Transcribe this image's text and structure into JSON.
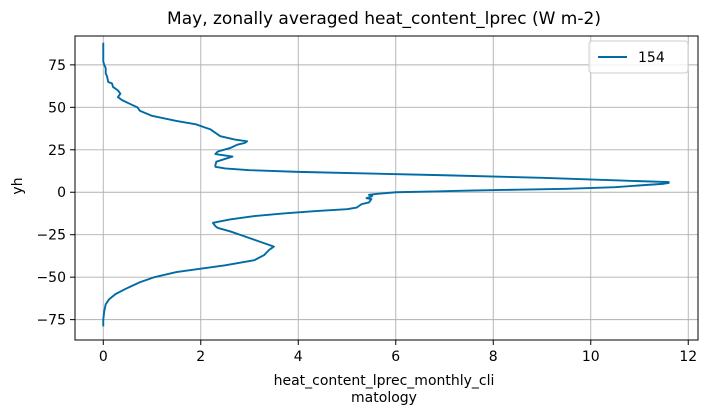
{
  "chart_data": {
    "type": "line",
    "title": "May, zonally averaged heat_content_lprec (W m-2)",
    "xlabel_lines": [
      "heat_content_lprec_monthly_cli",
      "matology"
    ],
    "ylabel": "yh",
    "xlim": [
      -0.58,
      12.2
    ],
    "ylim": [
      -87,
      92
    ],
    "xticks": [
      0,
      2,
      4,
      6,
      8,
      10,
      12
    ],
    "xtick_labels": [
      "0",
      "2",
      "4",
      "6",
      "8",
      "10",
      "12"
    ],
    "yticks": [
      -75,
      -50,
      -25,
      0,
      25,
      50,
      75
    ],
    "ytick_labels": [
      "−75",
      "−50",
      "−25",
      "0",
      "25",
      "50",
      "75"
    ],
    "grid": true,
    "legend_position": "top-right",
    "series": [
      {
        "name": "154",
        "color": "#006ba4",
        "points": [
          [
            0.0,
            -79
          ],
          [
            0.0,
            -75
          ],
          [
            0.02,
            -70
          ],
          [
            0.05,
            -66
          ],
          [
            0.12,
            -63
          ],
          [
            0.25,
            -60
          ],
          [
            0.45,
            -57
          ],
          [
            0.75,
            -53
          ],
          [
            1.05,
            -50
          ],
          [
            1.5,
            -47
          ],
          [
            2.0,
            -45
          ],
          [
            2.5,
            -43
          ],
          [
            3.1,
            -40
          ],
          [
            3.3,
            -37
          ],
          [
            3.4,
            -34
          ],
          [
            3.5,
            -32
          ],
          [
            3.2,
            -29
          ],
          [
            2.9,
            -26
          ],
          [
            2.6,
            -23
          ],
          [
            2.35,
            -21
          ],
          [
            2.3,
            -20
          ],
          [
            2.25,
            -18
          ],
          [
            2.6,
            -16
          ],
          [
            3.1,
            -14
          ],
          [
            3.7,
            -12.5
          ],
          [
            4.4,
            -11
          ],
          [
            5.0,
            -10
          ],
          [
            5.2,
            -9
          ],
          [
            5.3,
            -7
          ],
          [
            5.45,
            -6
          ],
          [
            5.5,
            -4
          ],
          [
            5.4,
            -3.5
          ],
          [
            5.5,
            -2.5
          ],
          [
            5.52,
            -2
          ],
          [
            5.45,
            -1.5
          ],
          [
            5.6,
            -1
          ],
          [
            6.0,
            0
          ],
          [
            6.8,
            0.5
          ],
          [
            7.5,
            1
          ],
          [
            8.5,
            1.5
          ],
          [
            9.5,
            2
          ],
          [
            10.5,
            3
          ],
          [
            11.5,
            5
          ],
          [
            11.6,
            5.5
          ],
          [
            11.6,
            6
          ],
          [
            10.5,
            7
          ],
          [
            9.0,
            8.5
          ],
          [
            7.0,
            10
          ],
          [
            5.5,
            11
          ],
          [
            4.0,
            12
          ],
          [
            3.0,
            13
          ],
          [
            2.5,
            14
          ],
          [
            2.3,
            15
          ],
          [
            2.3,
            16
          ],
          [
            2.32,
            18
          ],
          [
            2.65,
            21
          ],
          [
            2.3,
            22.5
          ],
          [
            2.35,
            24
          ],
          [
            2.6,
            26
          ],
          [
            2.75,
            28
          ],
          [
            2.9,
            29
          ],
          [
            2.95,
            30
          ],
          [
            2.7,
            31
          ],
          [
            2.4,
            33
          ],
          [
            2.3,
            35
          ],
          [
            2.2,
            37
          ],
          [
            2.1,
            38
          ],
          [
            1.9,
            40
          ],
          [
            1.5,
            42
          ],
          [
            1.0,
            45
          ],
          [
            0.75,
            48
          ],
          [
            0.7,
            50
          ],
          [
            0.55,
            52
          ],
          [
            0.4,
            54
          ],
          [
            0.3,
            56
          ],
          [
            0.35,
            58
          ],
          [
            0.3,
            60
          ],
          [
            0.2,
            62
          ],
          [
            0.18,
            64
          ],
          [
            0.1,
            65
          ],
          [
            0.08,
            68
          ],
          [
            0.05,
            70
          ],
          [
            0.05,
            73
          ],
          [
            0.02,
            75
          ],
          [
            0.0,
            77
          ],
          [
            0.0,
            80
          ],
          [
            0.0,
            83
          ],
          [
            0.0,
            86
          ],
          [
            0.0,
            88
          ]
        ]
      }
    ]
  }
}
